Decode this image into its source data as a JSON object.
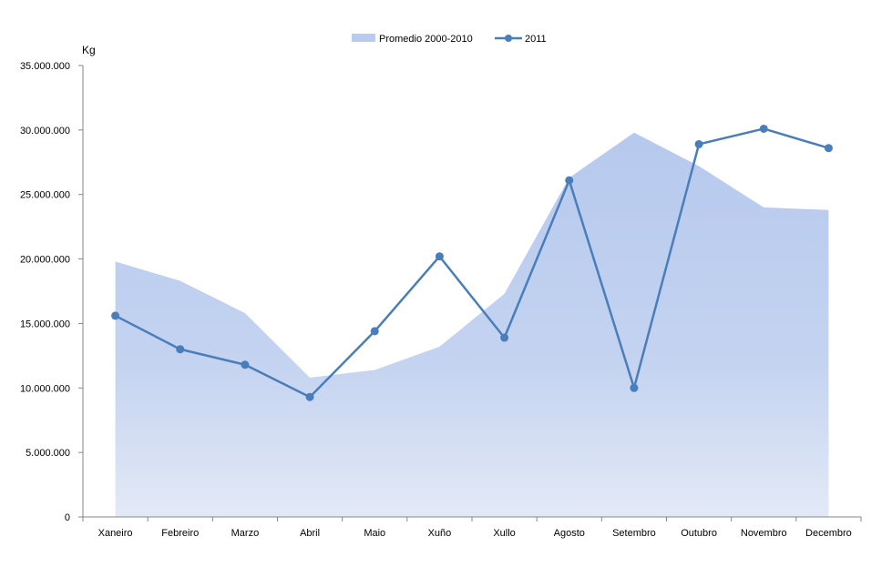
{
  "chart_data": {
    "type": "line",
    "title": "",
    "ylabel": "Kg",
    "xlabel": "",
    "categories": [
      "Xaneiro",
      "Febreiro",
      "Marzo",
      "Abril",
      "Maio",
      "Xuño",
      "Xullo",
      "Agosto",
      "Setembro",
      "Outubro",
      "Novembro",
      "Decembro"
    ],
    "ylim": [
      0,
      35000000
    ],
    "yticks": [
      0,
      5000000,
      10000000,
      15000000,
      20000000,
      25000000,
      30000000,
      35000000
    ],
    "ytick_labels": [
      "0",
      "5.000.000",
      "10.000.000",
      "15.000.000",
      "20.000.000",
      "25.000.000",
      "30.000.000",
      "35.000.000"
    ],
    "grid": false,
    "legend_position": "top-center",
    "series": [
      {
        "name": "Promedio 2000-2010",
        "kind": "area",
        "color": "#b9cbee",
        "values": [
          19800000,
          18300000,
          15800000,
          10800000,
          11400000,
          13200000,
          17300000,
          26300000,
          29800000,
          27200000,
          24000000,
          23800000
        ]
      },
      {
        "name": "2011",
        "kind": "line",
        "color": "#4a7ebb",
        "values": [
          15600000,
          13000000,
          11800000,
          9300000,
          14400000,
          20200000,
          13900000,
          26100000,
          10000000,
          28900000,
          30100000,
          28600000
        ]
      }
    ]
  }
}
